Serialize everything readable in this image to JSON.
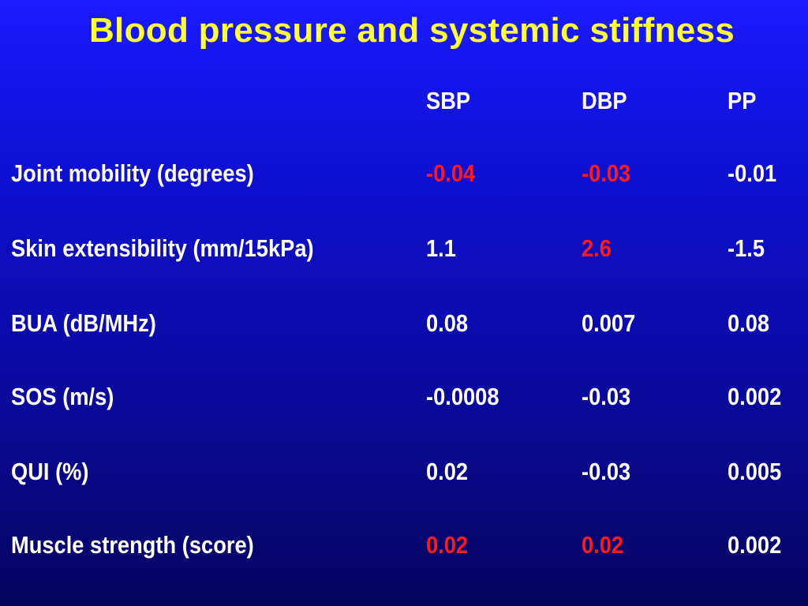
{
  "title": "Blood pressure and systemic stiffness",
  "columns": [
    "SBP",
    "DBP",
    "PP"
  ],
  "rows": [
    {
      "label": "Joint mobility (degrees)",
      "values": [
        "-0.04",
        "-0.03",
        "-0.01"
      ],
      "significant": [
        true,
        true,
        false
      ]
    },
    {
      "label": "Skin extensibility (mm/15kPa)",
      "values": [
        "1.1",
        "2.6",
        "-1.5"
      ],
      "significant": [
        false,
        true,
        false
      ]
    },
    {
      "label": "BUA (dB/MHz)",
      "values": [
        "0.08",
        "0.007",
        "0.08"
      ],
      "significant": [
        false,
        false,
        false
      ]
    },
    {
      "label": "SOS (m/s)",
      "values": [
        "-0.0008",
        "-0.03",
        "0.002"
      ],
      "significant": [
        false,
        false,
        false
      ]
    },
    {
      "label": "QUI (%)",
      "values": [
        "0.02",
        "-0.03",
        "0.005"
      ],
      "significant": [
        false,
        false,
        false
      ]
    },
    {
      "label": "Muscle strength (score)",
      "values": [
        "0.02",
        "0.02",
        "0.002"
      ],
      "significant": [
        true,
        true,
        false
      ]
    }
  ],
  "colors": {
    "title": "#ffff33",
    "text": "#ffffff",
    "significant": "#ff1a1a",
    "background_top": "#1a1aff",
    "background_bottom": "#05055e"
  }
}
